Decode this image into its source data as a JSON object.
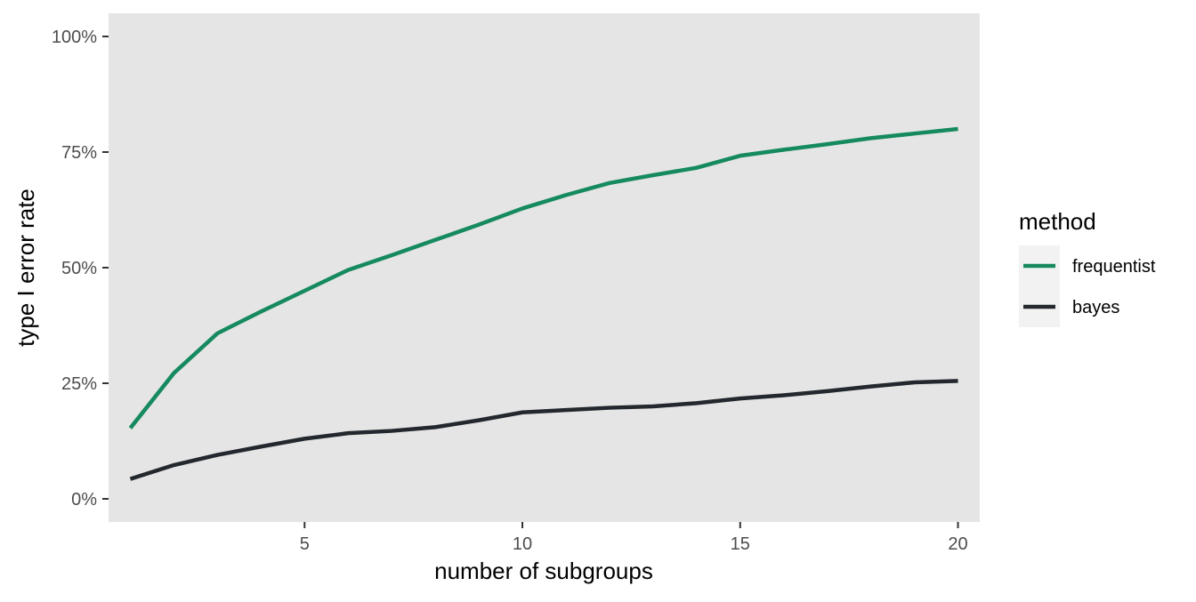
{
  "chart_data": {
    "type": "line",
    "title": "",
    "xlabel": "number of subgroups",
    "ylabel": "type I error rate",
    "xlim": [
      0.5,
      20.5
    ],
    "ylim": [
      -0.05,
      1.05
    ],
    "x_ticks": [
      5,
      10,
      15,
      20
    ],
    "x_tick_labels": [
      "5",
      "10",
      "15",
      "20"
    ],
    "y_ticks": [
      0,
      0.25,
      0.5,
      0.75,
      1.0
    ],
    "y_tick_labels": [
      "0%",
      "25%",
      "50%",
      "75%",
      "100%"
    ],
    "grid": false,
    "legend": {
      "title": "method",
      "position": "right"
    },
    "x": [
      1,
      2,
      3,
      4,
      5,
      6,
      7,
      8,
      9,
      10,
      11,
      12,
      13,
      14,
      15,
      16,
      17,
      18,
      19,
      20
    ],
    "series": [
      {
        "name": "frequentist",
        "color": "#168a5f",
        "values": [
          0.153,
          0.272,
          0.358,
          0.405,
          0.45,
          0.495,
          0.527,
          0.56,
          0.593,
          0.628,
          0.657,
          0.683,
          0.7,
          0.716,
          0.742,
          0.755,
          0.767,
          0.78,
          0.79,
          0.8
        ]
      },
      {
        "name": "bayes",
        "color": "#22282d",
        "values": [
          0.043,
          0.073,
          0.095,
          0.113,
          0.13,
          0.142,
          0.147,
          0.155,
          0.17,
          0.187,
          0.192,
          0.197,
          0.2,
          0.207,
          0.217,
          0.224,
          0.233,
          0.243,
          0.252,
          0.255
        ]
      }
    ]
  }
}
